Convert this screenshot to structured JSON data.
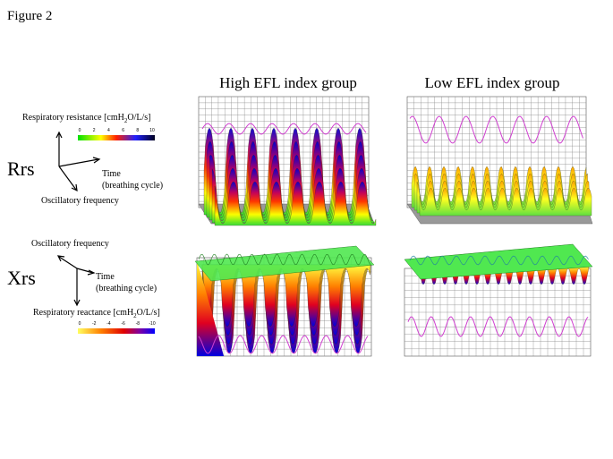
{
  "figure_label": "Figure 2",
  "columns": [
    "High EFL index group",
    "Low EFL index group"
  ],
  "rrs": {
    "symbol": "Rrs",
    "axis_label": [
      "Respiratory  resistance  [cmH",
      "2",
      "O/L/s]"
    ],
    "time_label": [
      "Time",
      "(breathing  cycle)"
    ],
    "frequency_label": "Oscillatory  frequency",
    "colorbar_ticks": [
      0,
      2,
      4,
      6,
      8,
      10
    ]
  },
  "xrs": {
    "symbol": "Xrs",
    "axis_label": [
      "Respiratory  reactance  [cmH",
      "2",
      "O/L/s]"
    ],
    "time_label": [
      "Time",
      "(breathing  cycle)"
    ],
    "frequency_label": "Oscillatory  frequency",
    "colorbar_ticks": [
      0,
      -2,
      -4,
      -6,
      -8,
      -10
    ]
  }
}
